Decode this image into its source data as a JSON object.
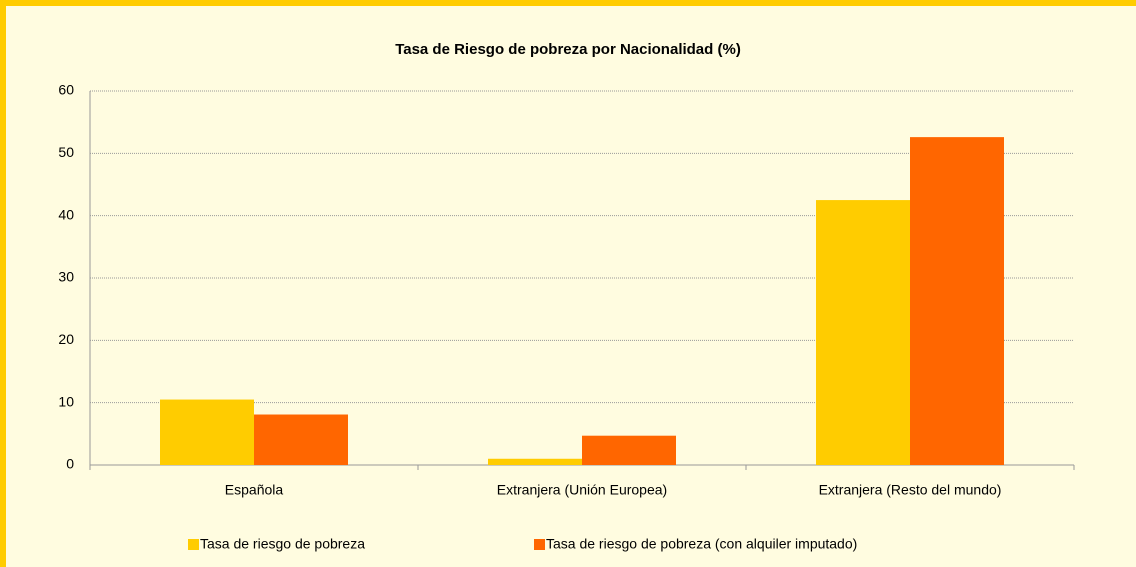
{
  "chart_data": {
    "type": "bar",
    "title": "Tasa de Riesgo de pobreza por Nacionalidad (%)",
    "categories": [
      "Española",
      "Extranjera (Unión Europea)",
      "Extranjera (Resto del mundo)"
    ],
    "series": [
      {
        "name": "Tasa de riesgo de pobreza",
        "color": "#FFCC00",
        "values": [
          10.5,
          1.0,
          42.5
        ]
      },
      {
        "name": "Tasa de riesgo de pobreza (con alquiler imputado)",
        "color": "#FF6600",
        "values": [
          8.1,
          4.7,
          52.6
        ]
      }
    ],
    "ylim": [
      0,
      60
    ],
    "yticks": [
      0,
      10,
      20,
      30,
      40,
      50,
      60
    ],
    "grid": true,
    "legend": "bottom"
  }
}
